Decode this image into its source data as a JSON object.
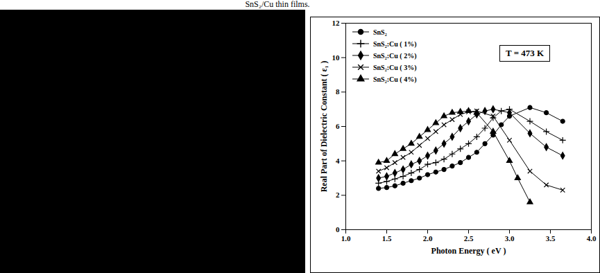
{
  "caption": "SnS₂/Cu thin films.",
  "chart_data": {
    "type": "line",
    "annotation": "T = 473 K",
    "xlabel": "Photon Energy ( eV )",
    "ylabel": "Real Part of Dielectric Constant ( ε₁ )",
    "xlim": [
      1,
      4
    ],
    "xticks": [
      {
        "value": 1,
        "label": "1.0"
      },
      {
        "value": 1.5,
        "label": "1.5"
      },
      {
        "value": 2,
        "label": "2.0"
      },
      {
        "value": 2.5,
        "label": "2.5"
      },
      {
        "value": 3,
        "label": "3.0"
      },
      {
        "value": 3.5,
        "label": "3.5"
      },
      {
        "value": 4,
        "label": "4.0"
      }
    ],
    "ylim": [
      0,
      12
    ],
    "yticks": [
      0,
      2,
      4,
      6,
      8,
      10,
      12
    ],
    "grid": false,
    "legend": "top-left",
    "series": [
      {
        "name": "SnS₂",
        "color": "#000000",
        "marker": "circle",
        "line_style": "solid",
        "x": [
          1.4,
          1.5,
          1.6,
          1.7,
          1.8,
          1.9,
          2.0,
          2.1,
          2.2,
          2.3,
          2.4,
          2.5,
          2.6,
          2.7,
          2.8,
          2.9,
          3.0,
          3.25,
          3.45,
          3.65
        ],
        "values": [
          2.4,
          2.45,
          2.55,
          2.7,
          2.85,
          3.0,
          3.2,
          3.35,
          3.5,
          3.7,
          3.9,
          4.2,
          4.5,
          5.0,
          5.5,
          6.1,
          6.6,
          7.1,
          6.8,
          6.3
        ]
      },
      {
        "name": "SnS₂:Cu ( 1%)",
        "color": "#000000",
        "marker": "plus",
        "line_style": "solid",
        "x": [
          1.4,
          1.5,
          1.6,
          1.7,
          1.8,
          1.9,
          2.0,
          2.1,
          2.2,
          2.3,
          2.4,
          2.5,
          2.6,
          2.7,
          2.8,
          2.9,
          3.0,
          3.25,
          3.45,
          3.65
        ],
        "values": [
          2.7,
          2.8,
          2.95,
          3.1,
          3.3,
          3.5,
          3.8,
          3.9,
          4.1,
          4.4,
          4.7,
          5.0,
          5.4,
          5.9,
          6.5,
          6.9,
          7.0,
          6.3,
          5.7,
          5.2
        ]
      },
      {
        "name": "SnS₂:Cu ( 2%)",
        "color": "#000000",
        "marker": "diamond",
        "line_style": "solid",
        "x": [
          1.4,
          1.5,
          1.6,
          1.7,
          1.8,
          1.9,
          2.0,
          2.1,
          2.2,
          2.3,
          2.4,
          2.5,
          2.6,
          2.7,
          2.8,
          3.0,
          3.25,
          3.45,
          3.65
        ],
        "values": [
          3.0,
          3.1,
          3.3,
          3.5,
          3.8,
          4.0,
          4.3,
          4.6,
          5.0,
          5.4,
          5.9,
          6.3,
          6.7,
          6.9,
          7.0,
          6.8,
          5.6,
          4.8,
          4.3
        ]
      },
      {
        "name": "SnS₂:Cu ( 3%)",
        "color": "#000000",
        "marker": "times",
        "line_style": "solid",
        "x": [
          1.4,
          1.5,
          1.6,
          1.7,
          1.8,
          1.9,
          2.0,
          2.1,
          2.2,
          2.3,
          2.4,
          2.5,
          2.6,
          2.8,
          3.0,
          3.25,
          3.45,
          3.65
        ],
        "values": [
          3.4,
          3.6,
          3.9,
          4.2,
          4.5,
          4.9,
          5.3,
          5.7,
          6.1,
          6.4,
          6.7,
          6.85,
          6.9,
          6.6,
          5.2,
          3.4,
          2.6,
          2.3
        ]
      },
      {
        "name": "SnS₂:Cu ( 4%)",
        "color": "#000000",
        "marker": "triangle",
        "line_style": "solid",
        "x": [
          1.4,
          1.5,
          1.6,
          1.7,
          1.8,
          1.9,
          2.0,
          2.1,
          2.2,
          2.3,
          2.4,
          2.5,
          2.6,
          2.8,
          3.0,
          3.1,
          3.25
        ],
        "values": [
          3.9,
          4.0,
          4.4,
          4.7,
          5.0,
          5.4,
          5.8,
          6.2,
          6.6,
          6.8,
          6.85,
          6.9,
          6.8,
          5.7,
          4.0,
          3.0,
          1.6
        ]
      }
    ]
  }
}
